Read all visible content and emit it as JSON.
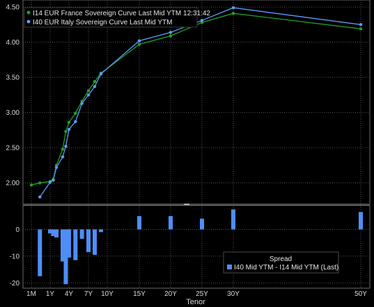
{
  "chart_data": [
    {
      "type": "line",
      "x_categories": [
        "1M",
        "1Y",
        "4Y",
        "7Y",
        "10Y",
        "15Y",
        "20Y",
        "25Y",
        "30Y",
        "50Y"
      ],
      "y_ticks": [
        "2.00",
        "2.50",
        "3.00",
        "3.50",
        "4.00",
        "4.50"
      ],
      "ylim": [
        1.7,
        4.6
      ],
      "grid": true,
      "legend_position": "top-left",
      "series": [
        {
          "name": "I14 EUR France Sovereign Curve Last Mid YTM 12:31:42",
          "color": "#1fa12a",
          "points": [
            {
              "tenor": 0.083,
              "y": 1.97
            },
            {
              "tenor": 0.5,
              "y": 2.0
            },
            {
              "tenor": 1.0,
              "y": 2.02
            },
            {
              "tenor": 1.5,
              "y": 2.05
            },
            {
              "tenor": 2.0,
              "y": 2.25
            },
            {
              "tenor": 3.0,
              "y": 2.48
            },
            {
              "tenor": 3.5,
              "y": 2.73
            },
            {
              "tenor": 4.0,
              "y": 2.86
            },
            {
              "tenor": 5.0,
              "y": 2.99
            },
            {
              "tenor": 6.0,
              "y": 3.16
            },
            {
              "tenor": 7.0,
              "y": 3.31
            },
            {
              "tenor": 8.0,
              "y": 3.44
            },
            {
              "tenor": 9.0,
              "y": 3.56
            },
            {
              "tenor": 15.0,
              "y": 3.97
            },
            {
              "tenor": 20.0,
              "y": 4.09
            },
            {
              "tenor": 25.0,
              "y": 4.28
            },
            {
              "tenor": 30.0,
              "y": 4.41
            },
            {
              "tenor": 50.0,
              "y": 4.19
            }
          ]
        },
        {
          "name": "I40 EUR Italy Sovereign Curve Last Mid YTM",
          "color": "#5c9dff",
          "points": [
            {
              "tenor": 0.5,
              "y": 1.8
            },
            {
              "tenor": 1.0,
              "y": 2.01
            },
            {
              "tenor": 1.5,
              "y": 2.04
            },
            {
              "tenor": 2.0,
              "y": 2.22
            },
            {
              "tenor": 3.0,
              "y": 2.37
            },
            {
              "tenor": 3.5,
              "y": 2.52
            },
            {
              "tenor": 4.0,
              "y": 2.76
            },
            {
              "tenor": 5.0,
              "y": 2.87
            },
            {
              "tenor": 6.0,
              "y": 3.13
            },
            {
              "tenor": 7.0,
              "y": 3.25
            },
            {
              "tenor": 8.0,
              "y": 3.37
            },
            {
              "tenor": 9.0,
              "y": 3.55
            },
            {
              "tenor": 15.0,
              "y": 4.02
            },
            {
              "tenor": 20.0,
              "y": 4.14
            },
            {
              "tenor": 25.0,
              "y": 4.31
            },
            {
              "tenor": 30.0,
              "y": 4.49
            },
            {
              "tenor": 50.0,
              "y": 4.25
            }
          ]
        }
      ]
    },
    {
      "type": "bar",
      "title": "Spread",
      "xlabel": "Tenor",
      "x_categories": [
        "1M",
        "1Y",
        "4Y",
        "7Y",
        "10Y",
        "15Y",
        "20Y",
        "25Y",
        "30Y",
        "50Y"
      ],
      "y_ticks": [
        "0",
        "-10",
        "-20"
      ],
      "ylim": [
        -22,
        9
      ],
      "legend_position": "bottom-right",
      "series": [
        {
          "name": "I40 Mid YTM - I14 Mid YTM (Last)",
          "color": "#4f8ef7",
          "points": [
            {
              "tenor": 0.5,
              "y": -17.5
            },
            {
              "tenor": 1.0,
              "y": -1.5
            },
            {
              "tenor": 1.5,
              "y": -2.5
            },
            {
              "tenor": 2.0,
              "y": -3.0
            },
            {
              "tenor": 3.0,
              "y": -12.0
            },
            {
              "tenor": 3.5,
              "y": -20.5
            },
            {
              "tenor": 4.0,
              "y": -10.5
            },
            {
              "tenor": 5.0,
              "y": -11.5
            },
            {
              "tenor": 6.0,
              "y": -3.5
            },
            {
              "tenor": 7.0,
              "y": -8.5
            },
            {
              "tenor": 8.0,
              "y": -9.5
            },
            {
              "tenor": 9.0,
              "y": -1.0
            },
            {
              "tenor": 15.0,
              "y": 5.0
            },
            {
              "tenor": 20.0,
              "y": 5.0
            },
            {
              "tenor": 25.0,
              "y": 4.0
            },
            {
              "tenor": 30.0,
              "y": 7.5
            },
            {
              "tenor": 50.0,
              "y": 6.5
            }
          ]
        }
      ]
    }
  ]
}
